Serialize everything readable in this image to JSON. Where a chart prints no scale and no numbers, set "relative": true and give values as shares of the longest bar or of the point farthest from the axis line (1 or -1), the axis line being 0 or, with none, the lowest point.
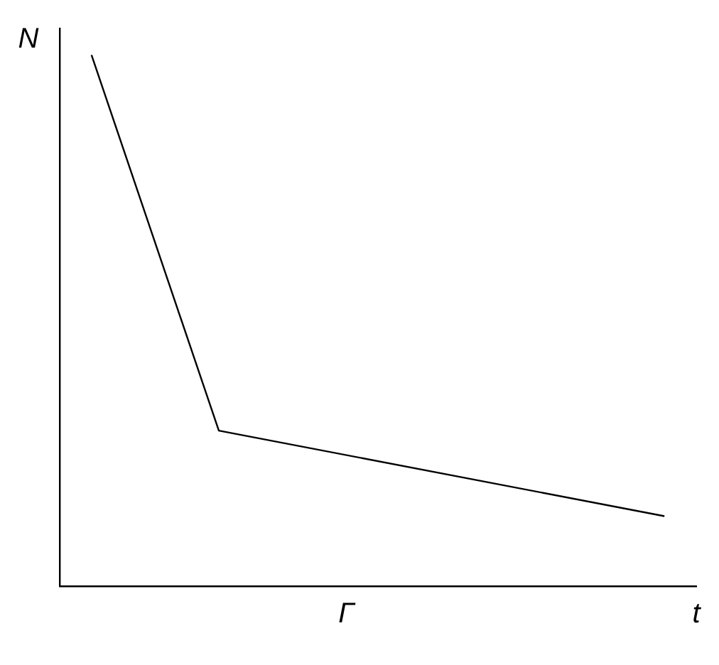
{
  "chart_data": {
    "type": "line",
    "relative": true,
    "xlabel": "t",
    "ylabel": "N",
    "annotations": [
      "Г"
    ],
    "categories": [
      null,
      null,
      null,
      null,
      null,
      null,
      null,
      null,
      null,
      null
    ],
    "series": [
      {
        "color": "#000000",
        "values": [
          1,
          null,
          0.293,
          null,
          null,
          null,
          null,
          null,
          null,
          0.132
        ]
      }
    ],
    "marker": "none",
    "line_style": "solid",
    "grid": false,
    "legend": false
  }
}
